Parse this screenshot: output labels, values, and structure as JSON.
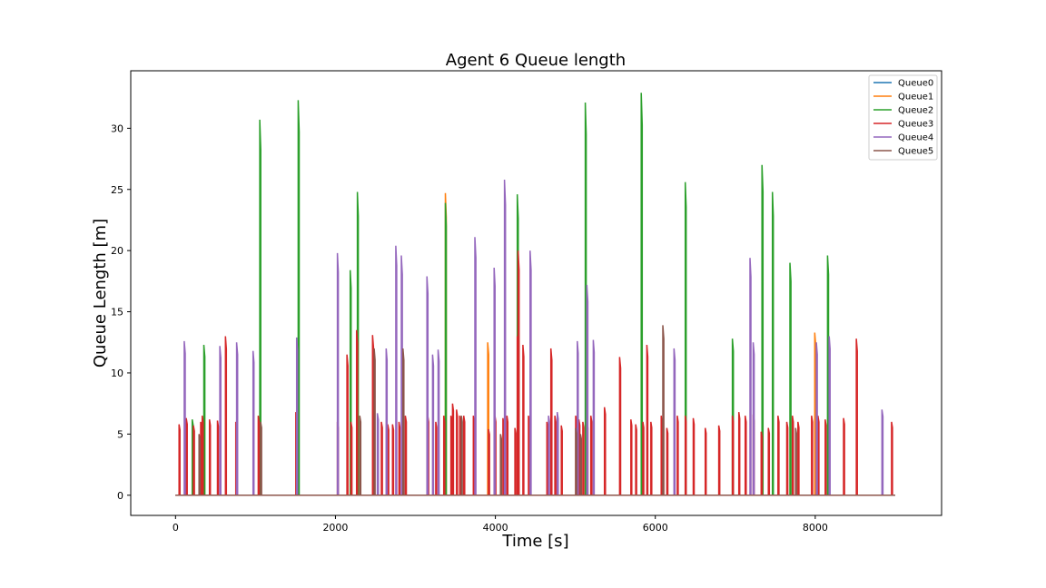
{
  "chart_data": {
    "type": "line",
    "title": "Agent 6 Queue length",
    "xlabel": "Time [s]",
    "ylabel": "Queue Length [m]",
    "xlim": [
      -560,
      9580
    ],
    "ylim": [
      -1.65,
      34.7
    ],
    "xticks": [
      0,
      2000,
      4000,
      6000,
      8000
    ],
    "yticks": [
      0,
      5,
      10,
      15,
      20,
      25,
      30
    ],
    "x_range": [
      0,
      9000
    ],
    "grid": false,
    "legend_position": "top-right",
    "series": [
      {
        "name": "Queue0",
        "color": "#1f77b4",
        "spikes": []
      },
      {
        "name": "Queue1",
        "color": "#ff7f0e",
        "spikes": [
          [
            3380,
            24.7
          ],
          [
            3910,
            12.5
          ],
          [
            8000,
            13.3
          ]
        ]
      },
      {
        "name": "Queue2",
        "color": "#2ca02c",
        "spikes": [
          [
            215,
            6.2
          ],
          [
            360,
            12.3
          ],
          [
            1060,
            30.7
          ],
          [
            1540,
            32.3
          ],
          [
            2190,
            18.4
          ],
          [
            2280,
            24.8
          ],
          [
            3380,
            23.9
          ],
          [
            4280,
            24.6
          ],
          [
            5130,
            32.1
          ],
          [
            5830,
            32.9
          ],
          [
            6380,
            25.6
          ],
          [
            6970,
            12.8
          ],
          [
            7340,
            27.0
          ],
          [
            7470,
            24.8
          ],
          [
            7690,
            19.0
          ],
          [
            8160,
            19.6
          ]
        ]
      },
      {
        "name": "Queue3",
        "color": "#d62728",
        "spikes": [
          [
            50,
            5.8
          ],
          [
            140,
            6.3
          ],
          [
            230,
            5.7
          ],
          [
            320,
            6.0
          ],
          [
            340,
            6.5
          ],
          [
            430,
            6.2
          ],
          [
            530,
            6.1
          ],
          [
            630,
            13.0
          ],
          [
            760,
            6.0
          ],
          [
            1040,
            6.5
          ],
          [
            1510,
            6.8
          ],
          [
            2030,
            6.0
          ],
          [
            2150,
            11.5
          ],
          [
            2200,
            6.0
          ],
          [
            2270,
            13.5
          ],
          [
            2470,
            13.1
          ],
          [
            2580,
            6.0
          ],
          [
            2660,
            5.8
          ],
          [
            2720,
            5.8
          ],
          [
            2800,
            6.0
          ],
          [
            2880,
            6.5
          ],
          [
            3160,
            6.5
          ],
          [
            3260,
            6.0
          ],
          [
            3360,
            6.5
          ],
          [
            3450,
            6.5
          ],
          [
            3470,
            7.5
          ],
          [
            3520,
            7.0
          ],
          [
            3560,
            6.5
          ],
          [
            3610,
            6.5
          ],
          [
            3730,
            6.5
          ],
          [
            3920,
            5.4
          ],
          [
            4000,
            6.5
          ],
          [
            4100,
            6.3
          ],
          [
            4150,
            6.5
          ],
          [
            4250,
            5.5
          ],
          [
            4280,
            13.0
          ],
          [
            4290,
            20.0
          ],
          [
            4350,
            12.3
          ],
          [
            4420,
            6.5
          ],
          [
            4650,
            6.0
          ],
          [
            4700,
            12.0
          ],
          [
            4750,
            6.5
          ],
          [
            4830,
            5.7
          ],
          [
            5010,
            6.5
          ],
          [
            5050,
            6.2
          ],
          [
            5100,
            6.0
          ],
          [
            5150,
            6.0
          ],
          [
            5200,
            6.5
          ],
          [
            5370,
            7.2
          ],
          [
            5560,
            11.3
          ],
          [
            5700,
            6.2
          ],
          [
            5760,
            5.8
          ],
          [
            5850,
            6.0
          ],
          [
            5900,
            12.3
          ],
          [
            5950,
            6.0
          ],
          [
            6080,
            6.5
          ],
          [
            6150,
            5.5
          ],
          [
            6280,
            6.5
          ],
          [
            6380,
            6.5
          ],
          [
            6480,
            6.3
          ],
          [
            6630,
            5.5
          ],
          [
            6800,
            5.7
          ],
          [
            6970,
            6.5
          ],
          [
            7050,
            6.8
          ],
          [
            7130,
            6.5
          ],
          [
            7230,
            6.6
          ],
          [
            7330,
            5.2
          ],
          [
            7420,
            5.5
          ],
          [
            7540,
            6.5
          ],
          [
            7650,
            6.0
          ],
          [
            7720,
            6.5
          ],
          [
            7790,
            6.0
          ],
          [
            7960,
            6.5
          ],
          [
            8040,
            6.5
          ],
          [
            8130,
            6.2
          ],
          [
            8360,
            6.3
          ],
          [
            8520,
            12.8
          ],
          [
            8960,
            6.0
          ]
        ]
      },
      {
        "name": "Queue4",
        "color": "#9467bd",
        "spikes": [
          [
            115,
            12.6
          ],
          [
            560,
            12.2
          ],
          [
            770,
            12.5
          ],
          [
            975,
            11.8
          ],
          [
            1520,
            12.9
          ],
          [
            2030,
            19.8
          ],
          [
            2530,
            6.7
          ],
          [
            2640,
            12.0
          ],
          [
            2760,
            20.4
          ],
          [
            2830,
            19.6
          ],
          [
            3150,
            17.9
          ],
          [
            3220,
            11.5
          ],
          [
            3290,
            11.9
          ],
          [
            3750,
            21.1
          ],
          [
            3990,
            18.6
          ],
          [
            4120,
            25.8
          ],
          [
            4440,
            20.0
          ],
          [
            4670,
            6.5
          ],
          [
            4780,
            6.8
          ],
          [
            5030,
            12.6
          ],
          [
            5150,
            17.2
          ],
          [
            5230,
            12.7
          ],
          [
            6240,
            12.0
          ],
          [
            7190,
            19.4
          ],
          [
            7230,
            12.5
          ],
          [
            8020,
            12.5
          ],
          [
            8180,
            13.0
          ],
          [
            8840,
            7.0
          ]
        ]
      },
      {
        "name": "Queue5",
        "color": "#8c564b",
        "spikes": [
          [
            300,
            5.0
          ],
          [
            1070,
            6.0
          ],
          [
            2310,
            6.5
          ],
          [
            2490,
            12.0
          ],
          [
            2850,
            12.0
          ],
          [
            3580,
            6.5
          ],
          [
            4070,
            5.0
          ],
          [
            5010,
            5.5
          ],
          [
            5070,
            5.0
          ],
          [
            6100,
            13.9
          ],
          [
            7760,
            5.5
          ]
        ]
      }
    ]
  }
}
